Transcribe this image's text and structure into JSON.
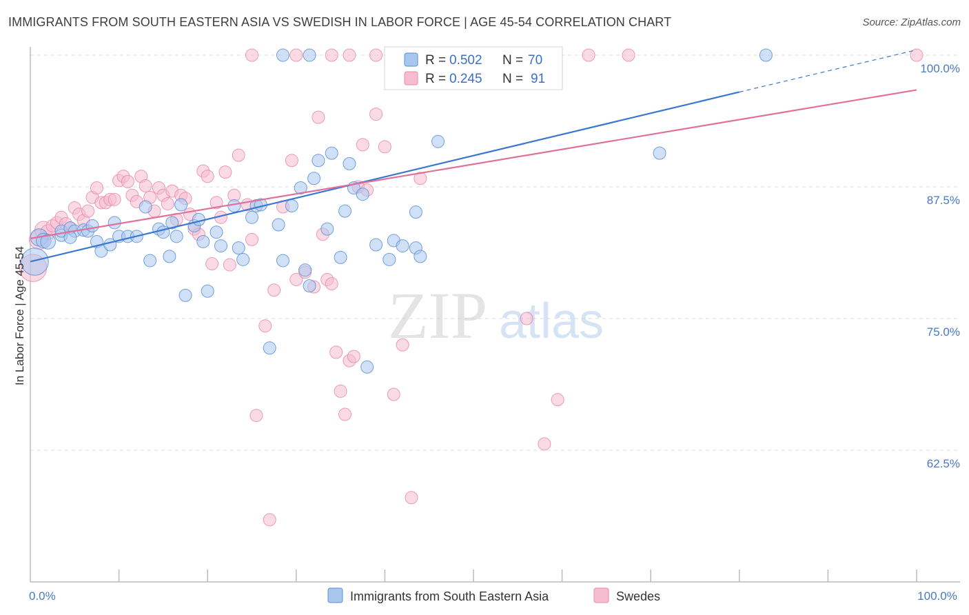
{
  "header": {
    "title": "IMMIGRANTS FROM SOUTH EASTERN ASIA VS SWEDISH IN LABOR FORCE | AGE 45-54 CORRELATION CHART",
    "source": "Source: ZipAtlas.com"
  },
  "watermark": {
    "zip": "ZIP",
    "atlas": "atlas"
  },
  "legend": {
    "r_label": "R =",
    "n_label": "N =",
    "series": [
      {
        "r": "0.502",
        "n": "70"
      },
      {
        "r": "0.245",
        "n": "91"
      }
    ]
  },
  "colors": {
    "blue_fill": "#a9c6ef",
    "blue_stroke": "#5b8fd6",
    "blue_line": "#3a78d0",
    "pink_fill": "#f6bcd0",
    "pink_stroke": "#e98aab",
    "pink_line": "#e0709a",
    "tick_label": "#4a78c8",
    "grid": "#dcdcdc"
  },
  "chart_data": {
    "type": "scatter",
    "title": "IMMIGRANTS FROM SOUTH EASTERN ASIA VS SWEDISH IN LABOR FORCE | AGE 45-54 CORRELATION CHART",
    "xlabel": "",
    "ylabel": "In Labor Force | Age 45-54",
    "xlim": [
      0,
      100
    ],
    "ylim": [
      50,
      100
    ],
    "x_ticks": [
      {
        "value": 0,
        "label": "0.0%"
      },
      {
        "value": 100,
        "label": "100.0%"
      }
    ],
    "y_ticks": [
      {
        "value": 62.5,
        "label": "62.5%"
      },
      {
        "value": 75.0,
        "label": "75.0%"
      },
      {
        "value": 87.5,
        "label": "87.5%"
      },
      {
        "value": 100.0,
        "label": "100.0%"
      }
    ],
    "grid": true,
    "legend_position": "top-center",
    "series": [
      {
        "name": "Immigrants from South Eastern Asia",
        "color": "#a9c6ef",
        "trend": {
          "x": [
            0,
            80
          ],
          "y": [
            80.4,
            96.5
          ],
          "dashed_to": [
            100,
            100.5
          ]
        },
        "points": [
          [
            0.5,
            80.4,
            22
          ],
          [
            1,
            82.7,
            14
          ],
          [
            1.5,
            82.4,
            12
          ],
          [
            2,
            82.3,
            12
          ],
          [
            3.5,
            82.9,
            10
          ],
          [
            3.5,
            83.3,
            10
          ],
          [
            4.5,
            83.6,
            10
          ],
          [
            5,
            83.3,
            10
          ],
          [
            4.5,
            82.7,
            10
          ],
          [
            6,
            83.4,
            10
          ],
          [
            6.5,
            83.3,
            10
          ],
          [
            7,
            83.8,
            10
          ],
          [
            7.5,
            82.3,
            10
          ],
          [
            8,
            81.4,
            10
          ],
          [
            9,
            82.0,
            10
          ],
          [
            10,
            82.8,
            10
          ],
          [
            11,
            82.8,
            10
          ],
          [
            9.5,
            84.1,
            10
          ],
          [
            12,
            82.8,
            10
          ],
          [
            13,
            85.6,
            10
          ],
          [
            13.5,
            80.5,
            10
          ],
          [
            14.5,
            83.5,
            10
          ],
          [
            15,
            83.2,
            10
          ],
          [
            15.7,
            80.9,
            10
          ],
          [
            16,
            84.1,
            10
          ],
          [
            16.5,
            82.8,
            10
          ],
          [
            17,
            85.8,
            10
          ],
          [
            17.5,
            77.2,
            10
          ],
          [
            18.5,
            83.8,
            10
          ],
          [
            19,
            84.4,
            10
          ],
          [
            19.5,
            82.3,
            10
          ],
          [
            20,
            77.6,
            10
          ],
          [
            21,
            83.2,
            10
          ],
          [
            21.5,
            81.9,
            10
          ],
          [
            23,
            85.7,
            10
          ],
          [
            23.5,
            81.7,
            10
          ],
          [
            24,
            80.6,
            10
          ],
          [
            25,
            84.6,
            10
          ],
          [
            25.5,
            85.7,
            10
          ],
          [
            26,
            85.8,
            10
          ],
          [
            27,
            72.2,
            10
          ],
          [
            28,
            83.9,
            10
          ],
          [
            28.5,
            80.5,
            10
          ],
          [
            29.5,
            85.7,
            10
          ],
          [
            30.5,
            87.4,
            10
          ],
          [
            31,
            79.6,
            10
          ],
          [
            31.5,
            78.1,
            10
          ],
          [
            32,
            88.3,
            10
          ],
          [
            32.5,
            90.0,
            10
          ],
          [
            33.5,
            83.5,
            10
          ],
          [
            34,
            90.7,
            10
          ],
          [
            35,
            80.8,
            10
          ],
          [
            35.5,
            85.2,
            10
          ],
          [
            36,
            89.7,
            10
          ],
          [
            36.5,
            87.4,
            10
          ],
          [
            37.5,
            86.8,
            10
          ],
          [
            28.5,
            100.0,
            10
          ],
          [
            31.5,
            100.0,
            10
          ],
          [
            38,
            70.4,
            10
          ],
          [
            39,
            82.0,
            10
          ],
          [
            40.5,
            80.6,
            10
          ],
          [
            41,
            82.4,
            10
          ],
          [
            42,
            81.9,
            10
          ],
          [
            43.5,
            85.1,
            10
          ],
          [
            43.5,
            81.7,
            10
          ],
          [
            44,
            80.9,
            10
          ],
          [
            46,
            91.8,
            10
          ],
          [
            50,
            100.0,
            10
          ],
          [
            71,
            90.7,
            10
          ],
          [
            83,
            100.0,
            10
          ]
        ]
      },
      {
        "name": "Swedes",
        "color": "#f6bcd0",
        "trend": {
          "x": [
            0,
            100
          ],
          "y": [
            82.6,
            96.7
          ]
        },
        "points": [
          [
            0.3,
            79.8,
            22
          ],
          [
            1,
            82.5,
            16
          ],
          [
            1.5,
            83.4,
            14
          ],
          [
            2,
            83.2,
            12
          ],
          [
            2.5,
            83.8,
            10
          ],
          [
            3,
            84.1,
            10
          ],
          [
            3.5,
            84.6,
            10
          ],
          [
            4,
            84.0,
            10
          ],
          [
            4.5,
            83.6,
            10
          ],
          [
            5,
            85.5,
            10
          ],
          [
            5.5,
            84.9,
            10
          ],
          [
            6,
            84.3,
            10
          ],
          [
            6.5,
            85.2,
            10
          ],
          [
            7,
            86.5,
            10
          ],
          [
            7.5,
            87.4,
            10
          ],
          [
            8,
            86.0,
            10
          ],
          [
            8.5,
            86.0,
            10
          ],
          [
            9,
            86.3,
            10
          ],
          [
            9.5,
            86.3,
            10
          ],
          [
            10,
            88.1,
            10
          ],
          [
            10.5,
            88.5,
            10
          ],
          [
            11,
            88.0,
            10
          ],
          [
            11.5,
            86.7,
            10
          ],
          [
            12,
            86.1,
            10
          ],
          [
            12.5,
            88.5,
            10
          ],
          [
            13,
            87.6,
            10
          ],
          [
            13.5,
            86.5,
            10
          ],
          [
            14,
            85.2,
            10
          ],
          [
            14.5,
            87.4,
            10
          ],
          [
            15,
            86.7,
            10
          ],
          [
            15.5,
            85.9,
            10
          ],
          [
            16,
            87.1,
            10
          ],
          [
            16.5,
            84.4,
            10
          ],
          [
            17,
            86.7,
            10
          ],
          [
            17.5,
            86.4,
            10
          ],
          [
            18,
            84.9,
            10
          ],
          [
            18.5,
            83.5,
            10
          ],
          [
            19,
            83.0,
            10
          ],
          [
            19.5,
            89.0,
            10
          ],
          [
            20,
            88.5,
            10
          ],
          [
            20.5,
            80.2,
            10
          ],
          [
            21,
            86.0,
            10
          ],
          [
            21.5,
            84.6,
            10
          ],
          [
            22,
            88.9,
            10
          ],
          [
            22.5,
            80.1,
            10
          ],
          [
            23,
            86.7,
            10
          ],
          [
            23.5,
            90.5,
            10
          ],
          [
            24.5,
            85.8,
            10
          ],
          [
            25,
            82.5,
            10
          ],
          [
            25.5,
            65.8,
            10
          ],
          [
            26.5,
            74.3,
            10
          ],
          [
            27,
            55.9,
            10
          ],
          [
            27.5,
            77.7,
            10
          ],
          [
            28.5,
            85.6,
            10
          ],
          [
            29.5,
            90.0,
            10
          ],
          [
            30,
            78.7,
            10
          ],
          [
            31,
            79.4,
            10
          ],
          [
            32,
            78.0,
            10
          ],
          [
            32.5,
            94.1,
            10
          ],
          [
            33,
            83.0,
            10
          ],
          [
            33.5,
            78.7,
            10
          ],
          [
            34,
            78.3,
            10
          ],
          [
            34.5,
            71.8,
            10
          ],
          [
            35,
            68.1,
            10
          ],
          [
            35.5,
            65.9,
            10
          ],
          [
            36,
            71.0,
            10
          ],
          [
            36.5,
            71.4,
            10
          ],
          [
            37,
            87.5,
            10
          ],
          [
            37.5,
            91.5,
            10
          ],
          [
            38,
            87.2,
            10
          ],
          [
            39,
            94.4,
            10
          ],
          [
            40,
            91.3,
            10
          ],
          [
            41,
            67.8,
            10
          ],
          [
            42,
            72.5,
            10
          ],
          [
            43,
            58.0,
            10
          ],
          [
            44,
            88.3,
            10
          ],
          [
            56,
            75.0,
            10
          ],
          [
            58,
            63.1,
            10
          ],
          [
            59.5,
            67.3,
            10
          ],
          [
            25,
            100.0,
            10
          ],
          [
            30,
            100.0,
            10
          ],
          [
            34,
            100.0,
            10
          ],
          [
            36,
            100.0,
            10
          ],
          [
            39,
            100.0,
            10
          ],
          [
            42,
            100.0,
            10
          ],
          [
            45,
            100.0,
            10
          ],
          [
            50,
            100.0,
            10
          ],
          [
            55,
            100.0,
            10
          ],
          [
            63,
            100.0,
            10
          ],
          [
            67.5,
            100.0,
            10
          ],
          [
            100,
            100.0,
            10
          ]
        ]
      }
    ]
  }
}
